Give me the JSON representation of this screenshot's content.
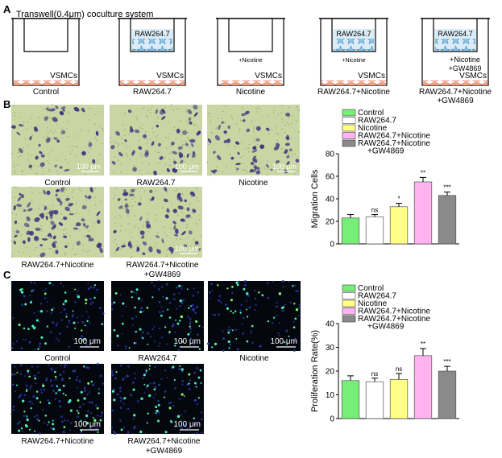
{
  "panel_labels": {
    "a": "A",
    "b": "B",
    "c": "C"
  },
  "panel_a": {
    "title": "Transwell(0.4μm) coculture system",
    "groups": [
      {
        "name": "Control",
        "upper_cells": false,
        "upper_label": "",
        "medium": []
      },
      {
        "name": "RAW264.7",
        "upper_cells": true,
        "upper_label": "RAW264.7",
        "medium": []
      },
      {
        "name": "Nicotine",
        "upper_cells": false,
        "upper_label": "",
        "medium": [
          "+Nicotine"
        ]
      },
      {
        "name": "RAW264.7+Nicotine",
        "upper_cells": true,
        "upper_label": "RAW264.7",
        "medium": [
          "+Nicotine"
        ]
      },
      {
        "name_lines": [
          "RAW264.7+Nicotine",
          "+GW4869"
        ],
        "upper_cells": true,
        "upper_label": "RAW264.7",
        "medium": [
          "+Nicotine",
          "+GW4869"
        ]
      }
    ],
    "bottom_cell_label": "VSMCs"
  },
  "panel_b": {
    "images": [
      {
        "label": "Control",
        "scale": "100 μm",
        "cells": 34
      },
      {
        "label": "RAW264.7",
        "scale": "100 μm",
        "cells": 48
      },
      {
        "label": "Nicotine",
        "scale": "100 μm",
        "cells": 50
      },
      {
        "label": "RAW264.7+Nicotine",
        "scale": "",
        "cells": 75
      },
      {
        "label_lines": [
          "RAW264.7+Nicotine",
          "+GW4869"
        ],
        "scale": "100 μm",
        "cells": 60
      }
    ]
  },
  "panel_c": {
    "images": [
      {
        "label": "Control",
        "scale": "100 μm",
        "dots": 40
      },
      {
        "label": "RAW264.7",
        "scale": "100 μm",
        "dots": 42
      },
      {
        "label": "Nicotine",
        "scale": "100 μm",
        "dots": 38
      },
      {
        "label": "RAW264.7+Nicotine",
        "scale": "100 μm",
        "dots": 60
      },
      {
        "label_lines": [
          "RAW264.7+Nicotine",
          "+GW4869"
        ],
        "scale": "100 μm",
        "dots": 45
      }
    ]
  },
  "colors": {
    "control": "#77ee77",
    "raw": "#ffffff",
    "nicotine": "#ffff88",
    "raw_nicotine": "#ffb3f0",
    "raw_nicotine_gw": "#8a8a8a",
    "transwell_bg": "#dcecf6",
    "micrograph_bg": "#c9d6a4",
    "stain": "#3d2f7e",
    "fluor_bg": "#05070f"
  },
  "chart_data": [
    {
      "type": "bar",
      "title": "",
      "xlabel": "",
      "ylabel": "Migration Cells",
      "ylim": [
        0,
        80
      ],
      "yticks": [
        0,
        20,
        40,
        60,
        80
      ],
      "grid": false,
      "legend_position": "top",
      "categories": [
        "Control",
        "RAW264.7",
        "Nicotine",
        "RAW264.7+Nicotine",
        "RAW264.7+Nicotine +GW4869"
      ],
      "legend": [
        "Control",
        "RAW264.7",
        "Nicotine",
        "RAW264.7+Nicotine",
        "RAW264.7+Nicotine",
        "+GW4869"
      ],
      "values": [
        23,
        24,
        33,
        55,
        43
      ],
      "errors": [
        3,
        2,
        3,
        4,
        3
      ],
      "significance": [
        "",
        "ns",
        "*",
        "**",
        "***"
      ]
    },
    {
      "type": "bar",
      "title": "",
      "xlabel": "",
      "ylabel": "Proliferation Rate(%)",
      "ylim": [
        0,
        40
      ],
      "yticks": [
        0,
        10,
        20,
        30,
        40
      ],
      "grid": false,
      "legend_position": "top",
      "categories": [
        "Control",
        "RAW264.7",
        "Nicotine",
        "RAW264.7+Nicotine",
        "RAW264.7+Nicotine +GW4869"
      ],
      "legend": [
        "Control",
        "RAW264.7",
        "Nicotine",
        "RAW264.7+Nicotine",
        "RAW264.7+Nicotine",
        "+GW4869"
      ],
      "values": [
        16,
        15.5,
        16.5,
        26.5,
        20
      ],
      "errors": [
        2,
        1.5,
        2.5,
        3,
        2
      ],
      "significance": [
        "",
        "ns",
        "ns",
        "**",
        "***"
      ]
    }
  ]
}
